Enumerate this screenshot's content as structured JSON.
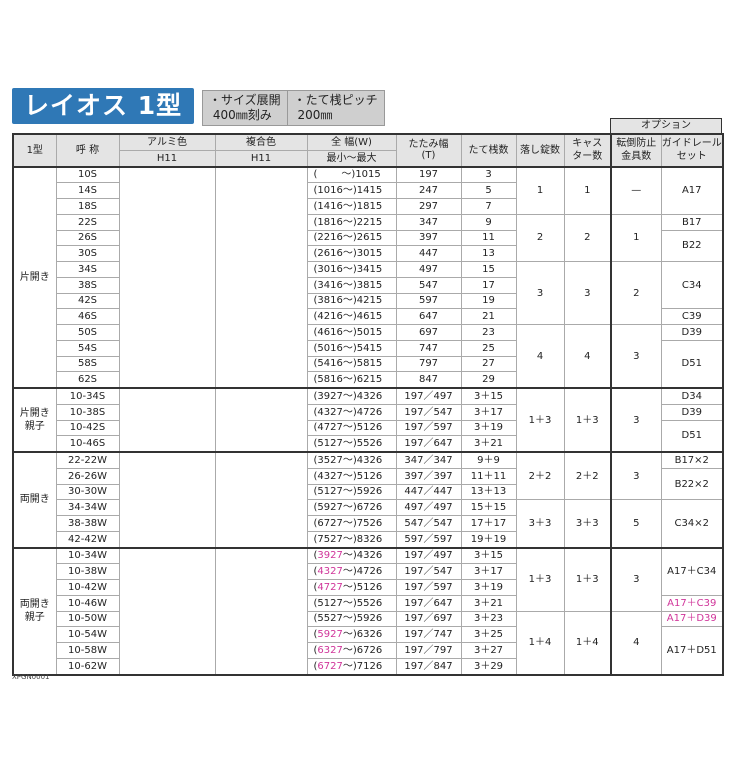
{
  "title": "レイオス 1型",
  "notes": [
    "・サイズ展開\n 400㎜刻み",
    "・たて桟ピッチ\n 200㎜"
  ],
  "option_header": "オプション",
  "headers": {
    "type": "1型",
    "name": "呼 称",
    "alumi": "アルミ色",
    "fukugo": "複合色",
    "width": "全 幅(W)",
    "alumi_sub": "H11",
    "fukugo_sub": "H11",
    "width_sub": "最小〜最大",
    "tatami": "たたみ幅\n(T)",
    "tatesan": "たて桟数",
    "lock": "落し錠数",
    "caster": "キャス\nター数",
    "tentou": "転倒防止\n金具数",
    "guide": "ガイドレール\nセット"
  },
  "colors": {
    "title_bg": "#2f78b6",
    "highlight": "#d0359a",
    "header_bg": "#e4e4e4"
  },
  "groups": [
    {
      "label": "片開き",
      "rows": [
        [
          "10S",
          "",
          "1015",
          "197",
          "3"
        ],
        [
          "14S",
          "1016",
          "1415",
          "247",
          "5"
        ],
        [
          "18S",
          "1416",
          "1815",
          "297",
          "7"
        ],
        [
          "22S",
          "1816",
          "2215",
          "347",
          "9"
        ],
        [
          "26S",
          "2216",
          "2615",
          "397",
          "11"
        ],
        [
          "30S",
          "2616",
          "3015",
          "447",
          "13"
        ],
        [
          "34S",
          "3016",
          "3415",
          "497",
          "15"
        ],
        [
          "38S",
          "3416",
          "3815",
          "547",
          "17"
        ],
        [
          "42S",
          "3816",
          "4215",
          "597",
          "19"
        ],
        [
          "46S",
          "4216",
          "4615",
          "647",
          "21"
        ],
        [
          "50S",
          "4616",
          "5015",
          "697",
          "23"
        ],
        [
          "54S",
          "5016",
          "5415",
          "747",
          "25"
        ],
        [
          "58S",
          "5416",
          "5815",
          "797",
          "27"
        ],
        [
          "62S",
          "5816",
          "6215",
          "847",
          "29"
        ]
      ],
      "lock": [
        [
          "1",
          3
        ],
        [
          "2",
          3
        ],
        [
          "3",
          4
        ],
        [
          "4",
          4
        ]
      ],
      "caster": [
        [
          "1",
          3
        ],
        [
          "2",
          3
        ],
        [
          "3",
          4
        ],
        [
          "4",
          4
        ]
      ],
      "tentou": [
        [
          "—",
          3
        ],
        [
          "1",
          3
        ],
        [
          "2",
          4
        ],
        [
          "3",
          4
        ]
      ],
      "guide": [
        [
          "A17",
          3
        ],
        [
          "B17",
          1
        ],
        [
          "B22",
          2
        ],
        [
          "C34",
          3
        ],
        [
          "C39",
          1
        ],
        [
          "D39",
          1
        ],
        [
          "D51",
          3
        ]
      ]
    },
    {
      "label": "片開き\n親子",
      "rows": [
        [
          "10-34S",
          "3927",
          "4326",
          "197／497",
          "3＋15"
        ],
        [
          "10-38S",
          "4327",
          "4726",
          "197／547",
          "3＋17"
        ],
        [
          "10-42S",
          "4727",
          "5126",
          "197／597",
          "3＋19"
        ],
        [
          "10-46S",
          "5127",
          "5526",
          "197／647",
          "3＋21"
        ]
      ],
      "lock": [
        [
          "1＋3",
          4
        ]
      ],
      "caster": [
        [
          "1＋3",
          4
        ]
      ],
      "tentou": [
        [
          "3",
          4
        ]
      ],
      "guide": [
        [
          "D34",
          1
        ],
        [
          "D39",
          1
        ],
        [
          "D51",
          2
        ]
      ]
    },
    {
      "label": "両開き",
      "rows": [
        [
          "22-22W",
          "3527",
          "4326",
          "347／347",
          "9＋9"
        ],
        [
          "26-26W",
          "4327",
          "5126",
          "397／397",
          "11＋11"
        ],
        [
          "30-30W",
          "5127",
          "5926",
          "447／447",
          "13＋13"
        ],
        [
          "34-34W",
          "5927",
          "6726",
          "497／497",
          "15＋15"
        ],
        [
          "38-38W",
          "6727",
          "7526",
          "547／547",
          "17＋17"
        ],
        [
          "42-42W",
          "7527",
          "8326",
          "597／597",
          "19＋19"
        ]
      ],
      "lock": [
        [
          "2＋2",
          3
        ],
        [
          "3＋3",
          3
        ]
      ],
      "caster": [
        [
          "2＋2",
          3
        ],
        [
          "3＋3",
          3
        ]
      ],
      "tentou": [
        [
          "3",
          3
        ],
        [
          "5",
          3
        ]
      ],
      "guide": [
        [
          "B17×2",
          1
        ],
        [
          "B22×2",
          2
        ],
        [
          "C34×2",
          3
        ]
      ]
    },
    {
      "label": "両開き\n親子",
      "rows": [
        [
          "10-34W",
          "3927",
          "4326",
          "197／497",
          "3＋15",
          true
        ],
        [
          "10-38W",
          "4327",
          "4726",
          "197／547",
          "3＋17",
          true
        ],
        [
          "10-42W",
          "4727",
          "5126",
          "197／597",
          "3＋19",
          true
        ],
        [
          "10-46W",
          "5127",
          "5526",
          "197／647",
          "3＋21",
          false
        ],
        [
          "10-50W",
          "5527",
          "5926",
          "197／697",
          "3＋23",
          false
        ],
        [
          "10-54W",
          "5927",
          "6326",
          "197／747",
          "3＋25",
          true
        ],
        [
          "10-58W",
          "6327",
          "6726",
          "197／797",
          "3＋27",
          true
        ],
        [
          "10-62W",
          "6727",
          "7126",
          "197／847",
          "3＋29",
          true
        ]
      ],
      "lock": [
        [
          "1＋3",
          4
        ],
        [
          "1＋4",
          4
        ]
      ],
      "caster": [
        [
          "1＋3",
          4
        ],
        [
          "1＋4",
          4
        ]
      ],
      "tentou": [
        [
          "3",
          4
        ],
        [
          "4",
          4
        ]
      ],
      "guide": [
        [
          "A17＋C34",
          3
        ],
        [
          "A17＋C39",
          1,
          true
        ],
        [
          "A17＋D39",
          1,
          true
        ],
        [
          "A17＋D51",
          3
        ]
      ]
    }
  ],
  "footnote": "XPGN0001"
}
